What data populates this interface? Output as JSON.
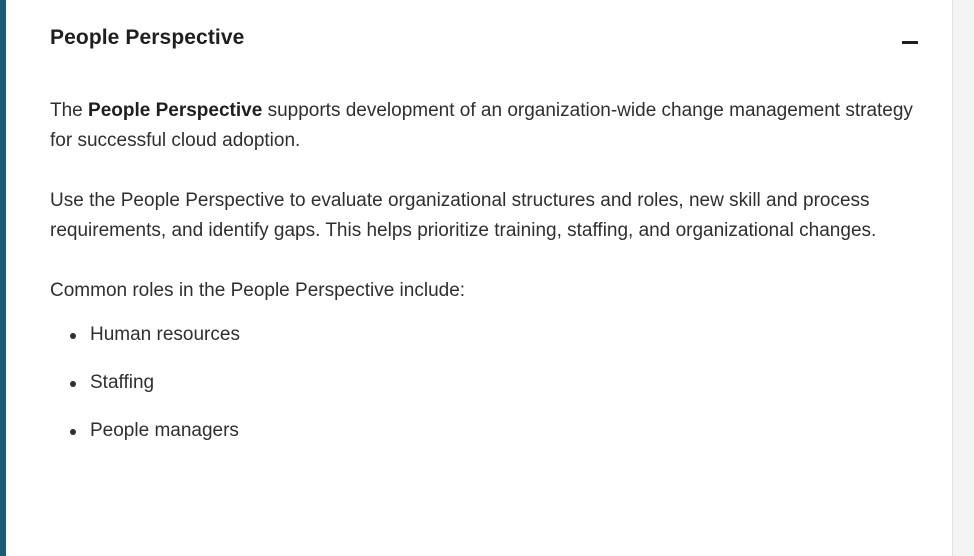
{
  "accordion": {
    "title": "People Perspective",
    "toggle_symbol": "minus-icon",
    "accent_color": "#1a5a74"
  },
  "content": {
    "intro": {
      "prefix": "The ",
      "bold": "People Perspective",
      "suffix": " supports development of an organization-wide change management strategy for successful cloud adoption."
    },
    "paragraph2": "Use the People Perspective to evaluate organizational structures and roles, new skill and process requirements, and identify gaps. This helps prioritize training, staffing, and organizational changes.",
    "roles_intro": "Common roles in the People Perspective include:",
    "roles": [
      "Human resources",
      "Staffing",
      "People managers"
    ]
  }
}
